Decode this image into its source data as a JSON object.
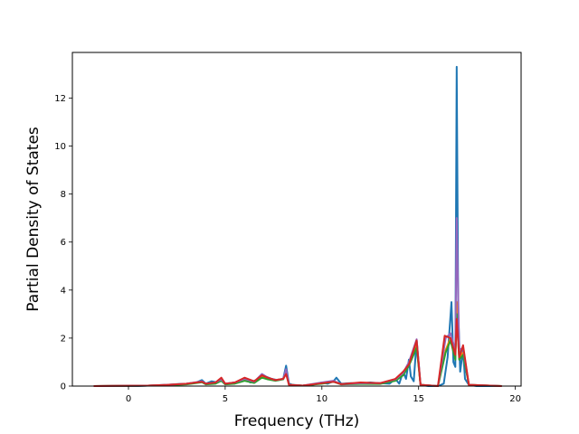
{
  "chart_data": {
    "type": "line",
    "title": "",
    "xlabel": "Frequency (THz)",
    "ylabel": "Partial Density of States",
    "xlim": [
      -2.9,
      20.3
    ],
    "ylim": [
      0,
      13.9
    ],
    "xticks": [
      0,
      5,
      10,
      15,
      20
    ],
    "yticks": [
      0,
      2,
      4,
      6,
      8,
      10,
      12
    ],
    "xtick_labels": [
      "0",
      "5",
      "10",
      "15",
      "20"
    ],
    "ytick_labels": [
      "0",
      "2",
      "4",
      "6",
      "8",
      "10",
      "12"
    ],
    "grid": false,
    "legend": "none",
    "series": [
      {
        "color": "#1f77b4",
        "x": [
          -1.8,
          0.5,
          1.0,
          2.0,
          2.5,
          3.0,
          3.5,
          3.8,
          4.0,
          4.3,
          4.6,
          4.8,
          5.0,
          5.5,
          6.0,
          6.3,
          6.6,
          6.9,
          7.1,
          7.4,
          7.7,
          8.0,
          8.15,
          8.3,
          8.5,
          9.0,
          9.5,
          10.0,
          10.3,
          10.6,
          10.75,
          11.0,
          11.5,
          12.0,
          12.5,
          13.0,
          13.5,
          13.8,
          14.0,
          14.2,
          14.35,
          14.5,
          14.6,
          14.75,
          14.9,
          15.1,
          15.5,
          16.0,
          16.3,
          16.5,
          16.7,
          16.8,
          16.9,
          16.97,
          17.05,
          17.15,
          17.3,
          17.4,
          17.6,
          18.0,
          19.3
        ],
        "y": [
          0,
          0,
          0.02,
          0.05,
          0.08,
          0.1,
          0.15,
          0.25,
          0.1,
          0.2,
          0.15,
          0.3,
          0.1,
          0.15,
          0.3,
          0.15,
          0.25,
          0.5,
          0.4,
          0.3,
          0.25,
          0.3,
          0.85,
          0.1,
          0.05,
          0.02,
          0.05,
          0.15,
          0.1,
          0.2,
          0.35,
          0.1,
          0.12,
          0.1,
          0.15,
          0.12,
          0.1,
          0.3,
          0.1,
          0.6,
          0.3,
          1.1,
          0.4,
          0.2,
          1.9,
          0.05,
          0,
          0,
          0.1,
          1.2,
          3.5,
          1.0,
          0.8,
          13.3,
          3.0,
          0.6,
          1.5,
          0.3,
          0.05,
          0,
          0
        ]
      },
      {
        "color": "#ff7f0e",
        "x": [
          -1.8,
          1.0,
          2.0,
          3.0,
          3.8,
          4.0,
          4.5,
          4.8,
          5.0,
          5.5,
          6.0,
          6.5,
          6.9,
          7.2,
          7.6,
          8.0,
          8.15,
          8.3,
          9.0,
          10.0,
          10.6,
          11.0,
          12.0,
          13.0,
          13.8,
          14.2,
          14.5,
          14.9,
          15.1,
          16.0,
          16.4,
          16.65,
          16.9,
          16.97,
          17.1,
          17.3,
          17.6,
          19.3
        ],
        "y": [
          0,
          0.02,
          0.04,
          0.08,
          0.18,
          0.08,
          0.12,
          0.25,
          0.08,
          0.12,
          0.25,
          0.15,
          0.4,
          0.3,
          0.25,
          0.3,
          0.6,
          0.05,
          0.02,
          0.12,
          0.2,
          0.08,
          0.1,
          0.1,
          0.25,
          0.5,
          0.9,
          1.7,
          0.05,
          0,
          1.5,
          2.0,
          1.2,
          3.5,
          1.2,
          1.4,
          0.05,
          0
        ]
      },
      {
        "color": "#2ca02c",
        "x": [
          -1.8,
          1.0,
          2.0,
          3.0,
          3.8,
          4.0,
          4.5,
          4.8,
          5.0,
          5.5,
          6.0,
          6.5,
          6.9,
          7.2,
          7.6,
          8.0,
          8.15,
          8.3,
          9.0,
          10.0,
          10.6,
          11.0,
          12.0,
          13.0,
          13.8,
          14.2,
          14.5,
          14.9,
          15.1,
          16.0,
          16.4,
          16.65,
          16.9,
          16.97,
          17.1,
          17.3,
          17.6,
          19.3
        ],
        "y": [
          0,
          0.02,
          0.04,
          0.07,
          0.16,
          0.07,
          0.1,
          0.22,
          0.07,
          0.1,
          0.22,
          0.13,
          0.35,
          0.28,
          0.22,
          0.28,
          0.55,
          0.05,
          0.02,
          0.1,
          0.18,
          0.07,
          0.09,
          0.09,
          0.22,
          0.45,
          0.85,
          1.6,
          0.05,
          0,
          1.4,
          1.9,
          1.1,
          3.0,
          1.1,
          1.3,
          0.05,
          0
        ]
      },
      {
        "color": "#9467bd",
        "x": [
          -1.8,
          1.0,
          2.0,
          3.0,
          3.8,
          4.0,
          4.5,
          4.8,
          5.0,
          5.5,
          6.0,
          6.5,
          6.9,
          7.2,
          7.6,
          8.0,
          8.15,
          8.3,
          9.0,
          10.0,
          10.6,
          11.0,
          12.0,
          13.0,
          13.8,
          14.2,
          14.5,
          14.9,
          15.1,
          16.0,
          16.4,
          16.65,
          16.9,
          16.97,
          17.1,
          17.3,
          17.6,
          19.3
        ],
        "y": [
          0,
          0.02,
          0.05,
          0.1,
          0.2,
          0.1,
          0.15,
          0.28,
          0.1,
          0.15,
          0.3,
          0.18,
          0.5,
          0.35,
          0.25,
          0.3,
          0.7,
          0.05,
          0.02,
          0.15,
          0.22,
          0.08,
          0.12,
          0.12,
          0.28,
          0.55,
          1.0,
          1.95,
          0.05,
          0,
          2.0,
          2.2,
          1.5,
          7.0,
          1.5,
          1.6,
          0.05,
          0
        ]
      },
      {
        "color": "#d62728",
        "x": [
          -1.8,
          1.0,
          2.0,
          3.0,
          3.8,
          4.0,
          4.5,
          4.8,
          5.0,
          5.5,
          6.0,
          6.5,
          6.9,
          7.2,
          7.6,
          8.0,
          8.15,
          8.3,
          9.0,
          10.0,
          10.6,
          11.0,
          12.0,
          13.0,
          13.8,
          14.2,
          14.5,
          14.9,
          15.1,
          16.0,
          16.35,
          16.65,
          16.9,
          16.97,
          17.1,
          17.3,
          17.6,
          19.3
        ],
        "y": [
          0,
          0.02,
          0.05,
          0.1,
          0.18,
          0.1,
          0.15,
          0.35,
          0.1,
          0.15,
          0.35,
          0.2,
          0.45,
          0.35,
          0.25,
          0.3,
          0.5,
          0.05,
          0.02,
          0.12,
          0.18,
          0.08,
          0.15,
          0.12,
          0.3,
          0.6,
          0.9,
          1.9,
          0.05,
          0,
          2.1,
          2.0,
          1.3,
          2.8,
          1.2,
          1.7,
          0.05,
          0
        ]
      }
    ]
  }
}
